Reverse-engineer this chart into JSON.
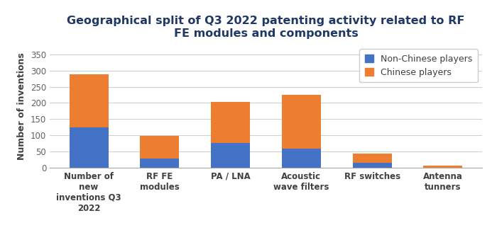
{
  "title": "Geographical split of Q3 2022 patenting activity related to RF\nFE modules and components",
  "ylabel": "Number of inventions",
  "categories": [
    "Number of\nnew\ninventions Q3\n2022",
    "RF FE\nmodules",
    "PA / LNA",
    "Acoustic\nwave filters",
    "RF switches",
    "Antenna\ntunners"
  ],
  "non_chinese": [
    125,
    30,
    78,
    60,
    15,
    0
  ],
  "chinese": [
    163,
    68,
    125,
    165,
    30,
    8
  ],
  "non_chinese_color": "#4472C4",
  "chinese_color": "#ED7D31",
  "title_color": "#1F3864",
  "ylim": [
    0,
    380
  ],
  "yticks": [
    0,
    50,
    100,
    150,
    200,
    250,
    300,
    350
  ],
  "legend_labels": [
    "Non-Chinese players",
    "Chinese players"
  ],
  "background_color": "#ffffff",
  "title_fontsize": 11.5,
  "axis_fontsize": 9,
  "tick_fontsize": 8.5,
  "legend_fontsize": 9
}
